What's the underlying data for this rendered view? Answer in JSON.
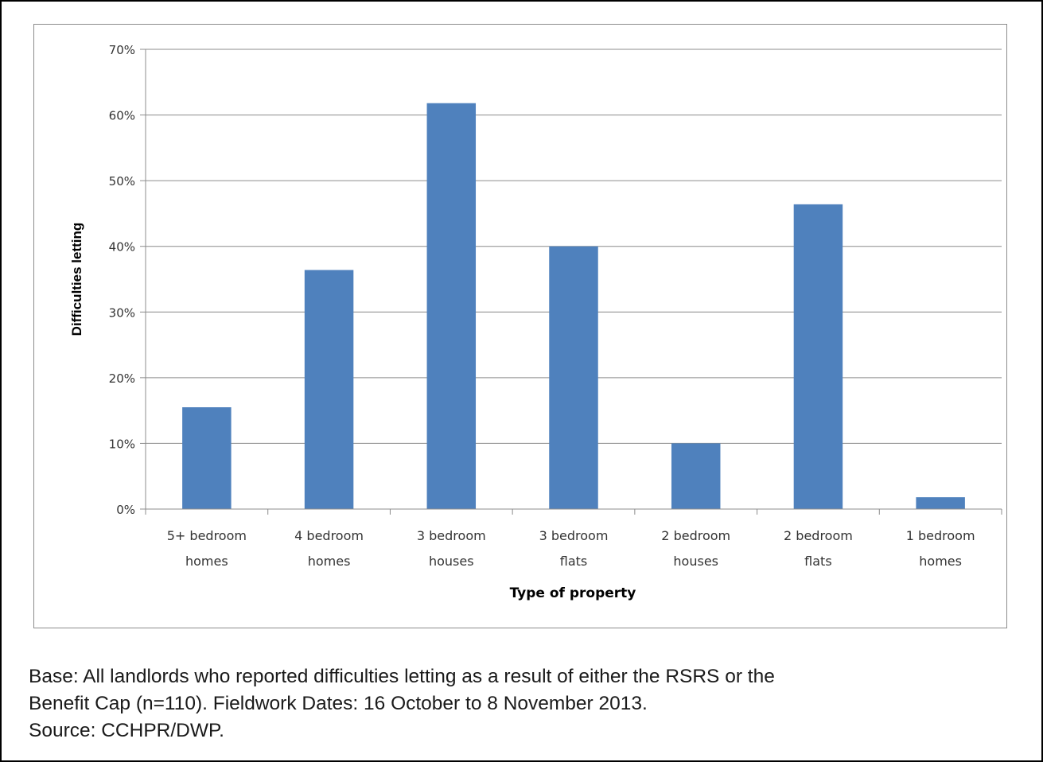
{
  "chart_data": {
    "type": "bar",
    "categories": [
      [
        "5+ bedroom",
        "homes"
      ],
      [
        "4 bedroom",
        "homes"
      ],
      [
        "3 bedroom",
        "houses"
      ],
      [
        "3 bedroom",
        "flats"
      ],
      [
        "2 bedroom",
        "houses"
      ],
      [
        "2 bedroom",
        "flats"
      ],
      [
        "1 bedroom",
        "homes"
      ]
    ],
    "values": [
      15.5,
      36.4,
      61.8,
      40.0,
      10.0,
      46.4,
      1.8
    ],
    "xlabel": "Type of property",
    "ylabel": "Difficulties letting",
    "ylim": [
      0,
      70
    ],
    "yticks": [
      "0%",
      "10%",
      "20%",
      "30%",
      "40%",
      "50%",
      "60%",
      "70%"
    ],
    "grid": true,
    "bar_color": "#4f81bd"
  },
  "caption": {
    "line1": "Base: All landlords who reported difficulties letting as a result of either the RSRS or the",
    "line2": "Benefit Cap (n=110). Fieldwork Dates: 16 October to 8 November 2013.",
    "line3": "Source: CCHPR/DWP."
  }
}
